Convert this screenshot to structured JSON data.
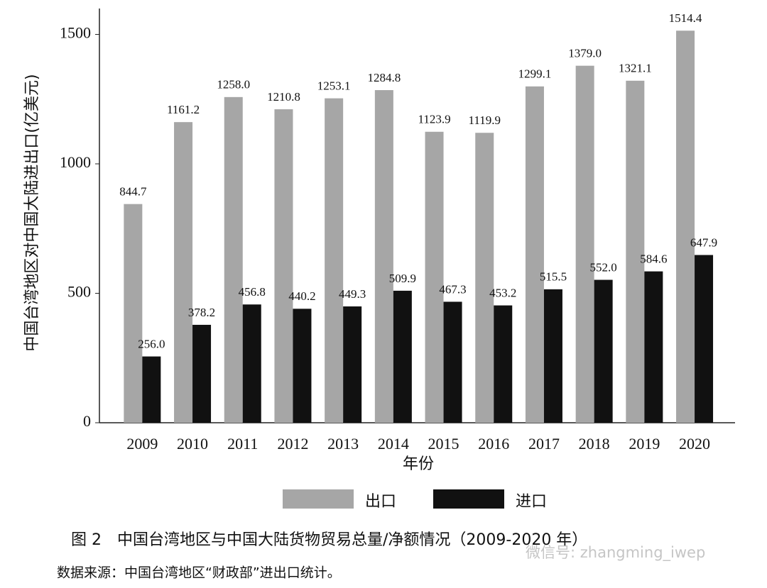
{
  "chart_data": {
    "type": "bar",
    "y_label": "中国台湾地区对中国大陆进出口(亿美元)",
    "x_label": "年份",
    "caption": "图 2　中国台湾地区与中国大陆货物贸易总量/净额情况（2009-2020 年）",
    "source": "数据来源：中国台湾地区“财政部”进出口统计。",
    "watermark": "微信号: zhangming_iwep",
    "categories": [
      "2009",
      "2010",
      "2011",
      "2012",
      "2013",
      "2014",
      "2015",
      "2016",
      "2017",
      "2018",
      "2019",
      "2020"
    ],
    "series": [
      {
        "name": "出口",
        "color": "#a6a6a6",
        "values": [
          844.7,
          1161.2,
          1258,
          1210.8,
          1253.1,
          1284.8,
          1123.9,
          1119.9,
          1299.1,
          1379,
          1321.1,
          1514.4
        ],
        "value_labels": [
          "844.7",
          "1161.2",
          "1258.0",
          "1210.8",
          "1253.1",
          "1284.8",
          "1123.9",
          "1119.9",
          "1299.1",
          "1379.0",
          "1321.1",
          "1514.4"
        ]
      },
      {
        "name": "进口",
        "color": "#111111",
        "values": [
          256,
          378.2,
          456.8,
          440.2,
          449.3,
          509.9,
          467.3,
          453.2,
          515.5,
          552,
          584.6,
          647.9
        ],
        "value_labels": [
          "256.0",
          "378.2",
          "456.8",
          "440.2",
          "449.3",
          "509.9",
          "467.3",
          "453.2",
          "515.5",
          "552.0",
          "584.6",
          "647.9"
        ]
      }
    ],
    "ylim": [
      0,
      1600
    ],
    "yticks": [
      0,
      500,
      1000,
      1500
    ],
    "grid": false
  }
}
